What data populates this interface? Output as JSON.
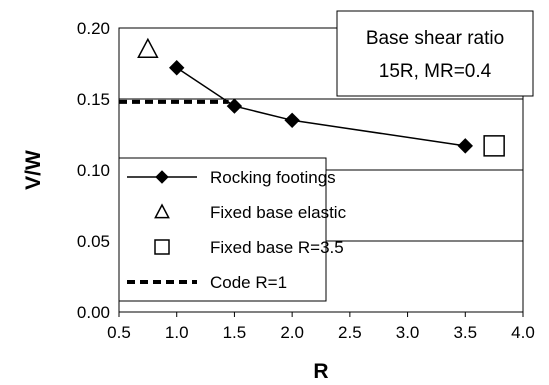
{
  "chart_data": {
    "type": "line",
    "title": "",
    "xlabel": "R",
    "ylabel": "V/W",
    "xlim": [
      0.5,
      4.0
    ],
    "ylim": [
      0.0,
      0.2
    ],
    "xticks": [
      "0.5",
      "1.0",
      "1.5",
      "2.0",
      "2.5",
      "3.0",
      "3.5",
      "4.0"
    ],
    "yticks": [
      "0.00",
      "0.05",
      "0.10",
      "0.15",
      "0.20"
    ],
    "grid": "horizontal",
    "legend_position": "bottom-left",
    "annotation": [
      "Base shear ratio",
      "15R, MR=0.4"
    ],
    "series": [
      {
        "name": "Rocking footings",
        "marker": "filled-diamond",
        "line": "solid",
        "color": "#000000",
        "points": [
          [
            1.0,
            0.172
          ],
          [
            1.5,
            0.145
          ],
          [
            2.0,
            0.135
          ],
          [
            3.5,
            0.117
          ]
        ]
      },
      {
        "name": "Fixed base elastic",
        "marker": "open-triangle",
        "line": "none",
        "color": "#000000",
        "points": [
          [
            0.75,
            0.185
          ]
        ]
      },
      {
        "name": "Fixed base R=3.5",
        "marker": "open-square",
        "line": "none",
        "color": "#000000",
        "points": [
          [
            3.75,
            0.117
          ]
        ]
      },
      {
        "name": "Code R=1",
        "marker": "none",
        "line": "dashed",
        "color": "#000000",
        "points": [
          [
            0.5,
            0.148
          ],
          [
            1.45,
            0.148
          ]
        ]
      }
    ]
  }
}
